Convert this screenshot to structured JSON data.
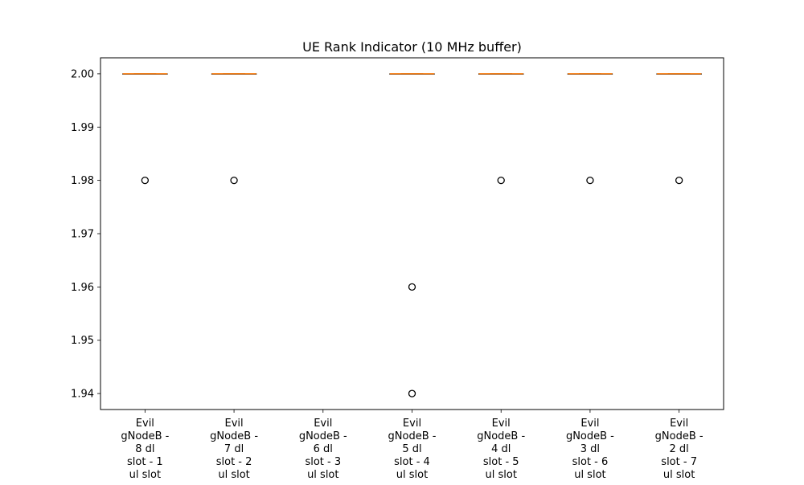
{
  "chart_data": {
    "type": "box",
    "title": "UE Rank Indicator (10 MHz buffer)",
    "xlabel": "",
    "ylabel": "",
    "ylim": [
      1.937,
      2.003
    ],
    "yticks": [
      "1.94",
      "1.95",
      "1.96",
      "1.97",
      "1.98",
      "1.99",
      "2.00"
    ],
    "grid": false,
    "colors": {
      "median": "#ff7f0e",
      "box": "#000000",
      "flier": "#000000"
    },
    "categories": [
      [
        "Evil",
        "gNodeB -",
        "8 dl",
        "slot - 1",
        "ul slot"
      ],
      [
        "Evil",
        "gNodeB -",
        "7 dl",
        "slot - 2",
        "ul slot"
      ],
      [
        "Evil",
        "gNodeB -",
        "6 dl",
        "slot - 3",
        "ul slot"
      ],
      [
        "Evil",
        "gNodeB -",
        "5 dl",
        "slot - 4",
        "ul slot"
      ],
      [
        "Evil",
        "gNodeB -",
        "4 dl",
        "slot - 5",
        "ul slot"
      ],
      [
        "Evil",
        "gNodeB -",
        "3 dl",
        "slot - 6",
        "ul slot"
      ],
      [
        "Evil",
        "gNodeB -",
        "2 dl",
        "slot - 7",
        "ul slot"
      ]
    ],
    "boxes": [
      {
        "q1": 2.0,
        "median": 2.0,
        "q3": 2.0,
        "whisker_low": 2.0,
        "whisker_high": 2.0,
        "outliers": [
          1.98
        ]
      },
      {
        "q1": 2.0,
        "median": 2.0,
        "q3": 2.0,
        "whisker_low": 2.0,
        "whisker_high": 2.0,
        "outliers": [
          1.98
        ]
      },
      null,
      {
        "q1": 2.0,
        "median": 2.0,
        "q3": 2.0,
        "whisker_low": 2.0,
        "whisker_high": 2.0,
        "outliers": [
          1.96,
          1.94
        ]
      },
      {
        "q1": 2.0,
        "median": 2.0,
        "q3": 2.0,
        "whisker_low": 2.0,
        "whisker_high": 2.0,
        "outliers": [
          1.98
        ]
      },
      {
        "q1": 2.0,
        "median": 2.0,
        "q3": 2.0,
        "whisker_low": 2.0,
        "whisker_high": 2.0,
        "outliers": [
          1.98
        ]
      },
      {
        "q1": 2.0,
        "median": 2.0,
        "q3": 2.0,
        "whisker_low": 2.0,
        "whisker_high": 2.0,
        "outliers": [
          1.98
        ]
      }
    ]
  }
}
